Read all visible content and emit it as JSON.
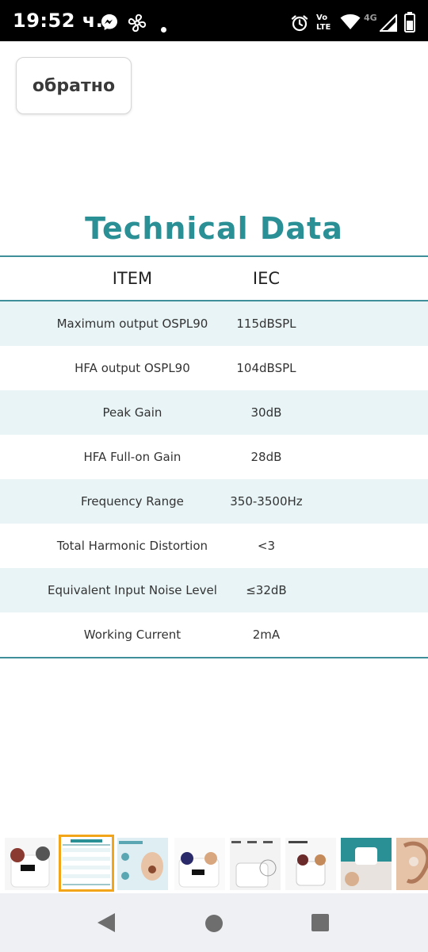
{
  "status_bar": {
    "time": "19:52 ч.",
    "volte_top": "Vo",
    "volte_bottom": "LTE",
    "network": "4G"
  },
  "back_button": {
    "label": "обратно"
  },
  "title": "Technical Data",
  "table": {
    "headers": {
      "item": "ITEM",
      "iec": "IEC"
    },
    "rows": [
      {
        "item": "Maximum output OSPL90",
        "iec": "115dBSPL"
      },
      {
        "item": "HFA output OSPL90",
        "iec": "104dBSPL"
      },
      {
        "item": "Peak Gain",
        "iec": "30dB"
      },
      {
        "item": "HFA Full-on Gain",
        "iec": "28dB"
      },
      {
        "item": "Frequency Range",
        "iec": "350-3500Hz"
      },
      {
        "item": "Total Harmonic Distortion",
        "iec": "<3"
      },
      {
        "item": "Equivalent Input Noise Level",
        "iec": "≤32dB"
      },
      {
        "item": "Working Current",
        "iec": "2mA"
      }
    ]
  },
  "colors": {
    "title": "#2b8f96",
    "rule": "#3e8f99",
    "row_alt": "#e8f4f6",
    "selected_thumb": "#f3a51a"
  },
  "thumbnails": [
    {
      "icon": "product-case-thumbnail-icon",
      "selected": false
    },
    {
      "icon": "technical-data-thumbnail-icon",
      "selected": true
    },
    {
      "icon": "noise-cancel-thumbnail-icon",
      "selected": false
    },
    {
      "icon": "product-display-thumbnail-icon",
      "selected": false
    },
    {
      "icon": "battery-hours-thumbnail-icon",
      "selected": false
    },
    {
      "icon": "product-details-thumbnail-icon",
      "selected": false
    },
    {
      "icon": "usage-thumbnail-icon",
      "selected": false
    },
    {
      "icon": "ear-thumbnail-icon",
      "selected": false
    }
  ],
  "nav": {
    "back_icon": "back-triangle-icon",
    "home_icon": "home-circle-icon",
    "recents_icon": "recents-square-icon"
  }
}
